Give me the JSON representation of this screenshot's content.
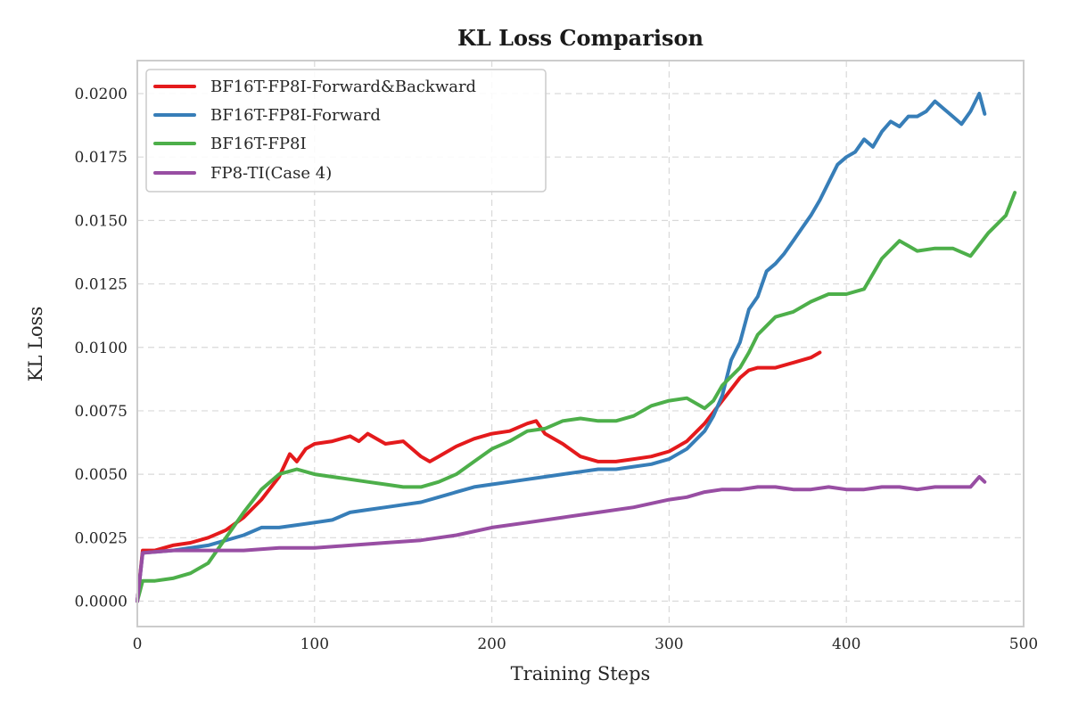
{
  "chart_data": {
    "type": "line",
    "title": "KL Loss Comparison",
    "xlabel": "Training Steps",
    "ylabel": "KL Loss",
    "xlim": [
      0,
      500
    ],
    "ylim": [
      -0.001,
      0.0213
    ],
    "xticks": [
      0,
      100,
      200,
      300,
      400,
      500
    ],
    "xtick_labels": [
      "0",
      "100",
      "200",
      "300",
      "400",
      "500"
    ],
    "yticks": [
      0.0,
      0.0025,
      0.005,
      0.0075,
      0.01,
      0.0125,
      0.015,
      0.0175,
      0.02
    ],
    "ytick_labels": [
      "0.0000",
      "0.0025",
      "0.0050",
      "0.0075",
      "0.0100",
      "0.0125",
      "0.0150",
      "0.0175",
      "0.0200"
    ],
    "grid": true,
    "legend_position": "top-left",
    "series": [
      {
        "name": "BF16T-FP8I-Forward&Backward",
        "color": "#e41a1c",
        "x": [
          0,
          3,
          10,
          20,
          30,
          40,
          50,
          60,
          70,
          80,
          86,
          90,
          95,
          100,
          110,
          120,
          125,
          130,
          140,
          150,
          160,
          165,
          170,
          180,
          190,
          200,
          210,
          220,
          225,
          230,
          240,
          250,
          260,
          270,
          280,
          290,
          300,
          310,
          320,
          330,
          340,
          345,
          350,
          360,
          370,
          380,
          385
        ],
        "y": [
          0.0,
          0.002,
          0.002,
          0.0022,
          0.0023,
          0.0025,
          0.0028,
          0.0033,
          0.004,
          0.0049,
          0.0058,
          0.0055,
          0.006,
          0.0062,
          0.0063,
          0.0065,
          0.0063,
          0.0066,
          0.0062,
          0.0063,
          0.0057,
          0.0055,
          0.0057,
          0.0061,
          0.0064,
          0.0066,
          0.0067,
          0.007,
          0.0071,
          0.0066,
          0.0062,
          0.0057,
          0.0055,
          0.0055,
          0.0056,
          0.0057,
          0.0059,
          0.0063,
          0.007,
          0.0079,
          0.0088,
          0.0091,
          0.0092,
          0.0092,
          0.0094,
          0.0096,
          0.0098
        ]
      },
      {
        "name": "BF16T-FP8I-Forward",
        "color": "#377eb8",
        "x": [
          0,
          3,
          20,
          40,
          60,
          70,
          80,
          90,
          100,
          110,
          120,
          130,
          140,
          150,
          160,
          170,
          180,
          190,
          200,
          210,
          220,
          230,
          240,
          250,
          260,
          270,
          280,
          290,
          300,
          310,
          320,
          325,
          330,
          335,
          340,
          345,
          350,
          355,
          360,
          365,
          370,
          375,
          380,
          385,
          390,
          395,
          400,
          405,
          410,
          415,
          420,
          425,
          430,
          435,
          440,
          445,
          450,
          455,
          460,
          465,
          470,
          475,
          478
        ],
        "y": [
          0.0,
          0.0019,
          0.002,
          0.0022,
          0.0026,
          0.0029,
          0.0029,
          0.003,
          0.0031,
          0.0032,
          0.0035,
          0.0036,
          0.0037,
          0.0038,
          0.0039,
          0.0041,
          0.0043,
          0.0045,
          0.0046,
          0.0047,
          0.0048,
          0.0049,
          0.005,
          0.0051,
          0.0052,
          0.0052,
          0.0053,
          0.0054,
          0.0056,
          0.006,
          0.0067,
          0.0073,
          0.0081,
          0.0095,
          0.0102,
          0.0115,
          0.012,
          0.013,
          0.0133,
          0.0137,
          0.0142,
          0.0147,
          0.0152,
          0.0158,
          0.0165,
          0.0172,
          0.0175,
          0.0177,
          0.0182,
          0.0179,
          0.0185,
          0.0189,
          0.0187,
          0.0191,
          0.0191,
          0.0193,
          0.0197,
          0.0194,
          0.0191,
          0.0188,
          0.0193,
          0.02,
          0.0192
        ]
      },
      {
        "name": "BF16T-FP8I",
        "color": "#4daf4a",
        "x": [
          0,
          3,
          10,
          20,
          30,
          40,
          50,
          60,
          70,
          80,
          90,
          95,
          100,
          110,
          120,
          130,
          140,
          150,
          160,
          170,
          180,
          190,
          200,
          210,
          220,
          230,
          240,
          250,
          260,
          270,
          280,
          290,
          300,
          310,
          320,
          325,
          330,
          340,
          345,
          350,
          360,
          370,
          380,
          390,
          400,
          410,
          420,
          430,
          440,
          450,
          460,
          470,
          480,
          490,
          495
        ],
        "y": [
          0.0,
          0.0008,
          0.0008,
          0.0009,
          0.0011,
          0.0015,
          0.0025,
          0.0035,
          0.0044,
          0.005,
          0.0052,
          0.0051,
          0.005,
          0.0049,
          0.0048,
          0.0047,
          0.0046,
          0.0045,
          0.0045,
          0.0047,
          0.005,
          0.0055,
          0.006,
          0.0063,
          0.0067,
          0.0068,
          0.0071,
          0.0072,
          0.0071,
          0.0071,
          0.0073,
          0.0077,
          0.0079,
          0.008,
          0.0076,
          0.0079,
          0.0085,
          0.0092,
          0.0098,
          0.0105,
          0.0112,
          0.0114,
          0.0118,
          0.0121,
          0.0121,
          0.0123,
          0.0135,
          0.0142,
          0.0138,
          0.0139,
          0.0139,
          0.0136,
          0.0145,
          0.0152,
          0.0161
        ]
      },
      {
        "name": "FP8-TI(Case 4)",
        "color": "#984ea3",
        "x": [
          0,
          3,
          20,
          40,
          60,
          80,
          100,
          120,
          140,
          160,
          180,
          200,
          220,
          240,
          260,
          280,
          300,
          310,
          320,
          330,
          340,
          350,
          360,
          370,
          380,
          390,
          400,
          410,
          420,
          430,
          440,
          450,
          460,
          470,
          475,
          478
        ],
        "y": [
          0.0,
          0.0019,
          0.002,
          0.002,
          0.002,
          0.0021,
          0.0021,
          0.0022,
          0.0023,
          0.0024,
          0.0026,
          0.0029,
          0.0031,
          0.0033,
          0.0035,
          0.0037,
          0.004,
          0.0041,
          0.0043,
          0.0044,
          0.0044,
          0.0045,
          0.0045,
          0.0044,
          0.0044,
          0.0045,
          0.0044,
          0.0044,
          0.0045,
          0.0045,
          0.0044,
          0.0045,
          0.0045,
          0.0045,
          0.0049,
          0.0047
        ]
      }
    ]
  }
}
